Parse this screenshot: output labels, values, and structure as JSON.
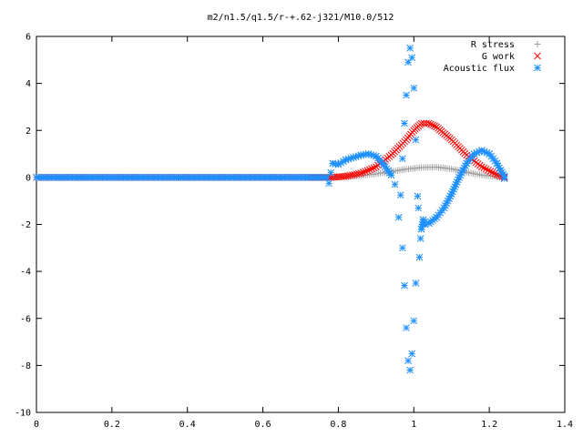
{
  "chart_data": {
    "type": "scatter",
    "title": "m2/n1.5/q1.5/r-+.62-j321/M10.0/512",
    "xlabel": "",
    "ylabel": "",
    "xlim": [
      0,
      1.4
    ],
    "ylim": [
      -10,
      6
    ],
    "x_ticks": [
      "0",
      "0.2",
      "0.4",
      "0.6",
      "0.8",
      "1",
      "1.2",
      "1.4"
    ],
    "y_ticks": [
      "6",
      "4",
      "2",
      "0",
      "-2",
      "-4",
      "-6",
      "-8",
      "-10"
    ],
    "grid": false,
    "legend_position": "top-right",
    "series": [
      {
        "name": "R stress",
        "marker": "plus",
        "color": "#a0a0a0",
        "points": [
          [
            0,
            0
          ],
          [
            0.1,
            0
          ],
          [
            0.2,
            0
          ],
          [
            0.3,
            0
          ],
          [
            0.4,
            0
          ],
          [
            0.5,
            0
          ],
          [
            0.6,
            0
          ],
          [
            0.7,
            0
          ],
          [
            0.78,
            0
          ],
          [
            0.82,
            0.03
          ],
          [
            0.86,
            0.08
          ],
          [
            0.9,
            0.15
          ],
          [
            0.94,
            0.25
          ],
          [
            0.98,
            0.35
          ],
          [
            1.02,
            0.42
          ],
          [
            1.06,
            0.44
          ],
          [
            1.1,
            0.36
          ],
          [
            1.14,
            0.22
          ],
          [
            1.18,
            0.1
          ],
          [
            1.22,
            0.03
          ],
          [
            1.24,
            0
          ]
        ]
      },
      {
        "name": "G work",
        "marker": "cross",
        "color": "#ff0000",
        "points": [
          [
            0,
            0
          ],
          [
            0.1,
            0
          ],
          [
            0.2,
            0
          ],
          [
            0.3,
            0
          ],
          [
            0.4,
            0
          ],
          [
            0.5,
            0
          ],
          [
            0.6,
            0
          ],
          [
            0.7,
            0
          ],
          [
            0.78,
            0
          ],
          [
            0.82,
            0.05
          ],
          [
            0.86,
            0.18
          ],
          [
            0.9,
            0.45
          ],
          [
            0.94,
            0.95
          ],
          [
            0.98,
            1.6
          ],
          [
            1.0,
            2.0
          ],
          [
            1.02,
            2.3
          ],
          [
            1.04,
            2.3
          ],
          [
            1.06,
            2.15
          ],
          [
            1.1,
            1.6
          ],
          [
            1.14,
            0.95
          ],
          [
            1.18,
            0.45
          ],
          [
            1.22,
            0.12
          ],
          [
            1.24,
            0
          ]
        ]
      },
      {
        "name": "Acoustic flux",
        "marker": "star",
        "color": "#1e90ff",
        "points": [
          [
            0,
            0
          ],
          [
            0.1,
            0
          ],
          [
            0.2,
            0
          ],
          [
            0.3,
            0
          ],
          [
            0.4,
            0
          ],
          [
            0.5,
            0
          ],
          [
            0.6,
            0
          ],
          [
            0.7,
            0
          ],
          [
            0.77,
            0
          ],
          [
            0.775,
            -0.25
          ],
          [
            0.78,
            0.2
          ],
          [
            0.785,
            0.6
          ],
          [
            0.8,
            0.55
          ],
          [
            0.82,
            0.75
          ],
          [
            0.84,
            0.85
          ],
          [
            0.86,
            0.95
          ],
          [
            0.88,
            1.0
          ],
          [
            0.9,
            0.9
          ],
          [
            0.92,
            0.55
          ],
          [
            0.94,
            0.1
          ],
          [
            0.95,
            -0.3
          ],
          [
            0.96,
            -1.7
          ],
          [
            0.965,
            -0.75
          ],
          [
            0.97,
            -3.0
          ],
          [
            0.975,
            -4.6
          ],
          [
            0.98,
            -6.4
          ],
          [
            0.985,
            -7.8
          ],
          [
            0.99,
            -8.2
          ],
          [
            0.995,
            -7.5
          ],
          [
            1.0,
            -6.1
          ],
          [
            1.005,
            -4.5
          ],
          [
            0.97,
            0.8
          ],
          [
            0.975,
            2.3
          ],
          [
            0.98,
            3.5
          ],
          [
            0.985,
            4.9
          ],
          [
            0.99,
            5.5
          ],
          [
            0.995,
            5.1
          ],
          [
            1.0,
            3.8
          ],
          [
            1.005,
            1.6
          ],
          [
            1.01,
            -0.8
          ],
          [
            1.012,
            -1.3
          ],
          [
            1.015,
            -3.4
          ],
          [
            1.018,
            -2.6
          ],
          [
            1.02,
            -2.2
          ],
          [
            1.025,
            -1.8
          ],
          [
            1.03,
            -2.0
          ],
          [
            1.04,
            -1.95
          ],
          [
            1.06,
            -1.7
          ],
          [
            1.08,
            -1.3
          ],
          [
            1.1,
            -0.7
          ],
          [
            1.12,
            0.0
          ],
          [
            1.14,
            0.6
          ],
          [
            1.16,
            1.0
          ],
          [
            1.18,
            1.15
          ],
          [
            1.2,
            1.0
          ],
          [
            1.22,
            0.6
          ],
          [
            1.23,
            0.3
          ],
          [
            1.24,
            0.05
          ],
          [
            1.24,
            -0.05
          ]
        ]
      }
    ]
  }
}
